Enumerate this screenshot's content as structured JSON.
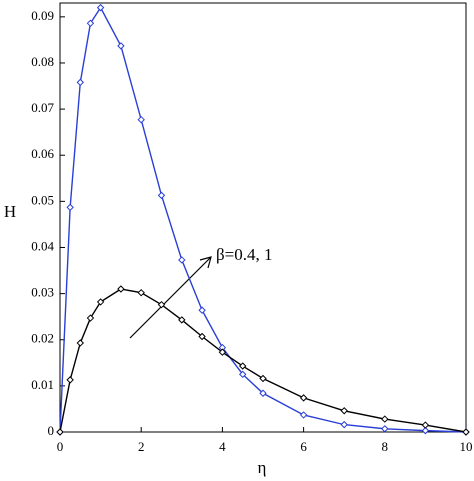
{
  "chart_data": {
    "type": "line",
    "x_label": "η",
    "y_label": "H",
    "annotation": "β=0.4, 1",
    "x": [
      0,
      0.25,
      0.5,
      0.75,
      1,
      1.5,
      2,
      2.5,
      3,
      3.5,
      4,
      4.5,
      5,
      6,
      7,
      8,
      9,
      10
    ],
    "series": [
      {
        "color": "#2a3fd6",
        "values": [
          0,
          0.0487,
          0.0758,
          0.0886,
          0.092,
          0.0837,
          0.0677,
          0.0513,
          0.0373,
          0.0264,
          0.0183,
          0.0125,
          0.0084,
          0.0037,
          0.0016,
          0.0007,
          0.0003,
          0
        ]
      },
      {
        "color": "#000000",
        "values": [
          0,
          0.0113,
          0.0193,
          0.0247,
          0.0282,
          0.031,
          0.0302,
          0.0276,
          0.0243,
          0.0207,
          0.0173,
          0.0143,
          0.0116,
          0.0074,
          0.0046,
          0.0028,
          0.0015,
          0
        ]
      }
    ],
    "xlim": [
      0,
      10
    ],
    "xticks": [
      0,
      2,
      4,
      6,
      8,
      10
    ],
    "ylim": [
      0,
      0.093
    ],
    "yticks": [
      0,
      0.01,
      0.02,
      0.03,
      0.04,
      0.05,
      0.06,
      0.07,
      0.08,
      0.09
    ]
  }
}
